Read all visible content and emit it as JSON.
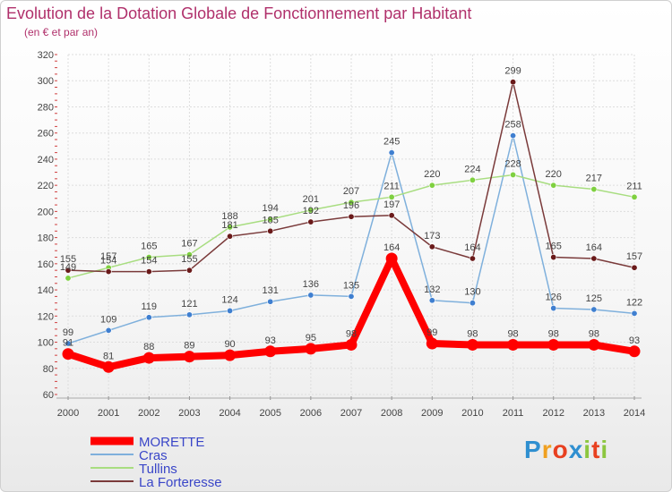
{
  "title": "Evolution de la Dotation Globale de Fonctionnement par Habitant",
  "subtitle": "(en € et par an)",
  "logo_text": "Proxiti",
  "chart_data": {
    "type": "line",
    "title": "Evolution de la Dotation Globale de Fonctionnement par Habitant",
    "subtitle": "(en € et par an)",
    "xlabel": "",
    "ylabel": "",
    "ylim": [
      60,
      320
    ],
    "yticks": [
      60,
      80,
      100,
      120,
      140,
      160,
      180,
      200,
      220,
      240,
      260,
      280,
      300,
      320
    ],
    "grid": true,
    "legend_position": "bottom-left",
    "x": [
      "2000",
      "2001",
      "2002",
      "2003",
      "2004",
      "2005",
      "2006",
      "2007",
      "2008",
      "2009",
      "2010",
      "2011",
      "2012",
      "2013",
      "2014"
    ],
    "series": [
      {
        "name": "MORETTE",
        "color": "#ff0000",
        "line_color": "#ff0000",
        "width": "bold",
        "values": [
          91,
          81,
          88,
          89,
          90,
          93,
          95,
          98,
          164,
          99,
          98,
          98,
          98,
          98,
          93
        ]
      },
      {
        "name": "Cras",
        "color": "#3f7fd0",
        "line_color": "#7fb0dc",
        "width": "thin",
        "values": [
          99,
          109,
          119,
          121,
          124,
          131,
          136,
          135,
          245,
          132,
          130,
          258,
          126,
          125,
          122
        ]
      },
      {
        "name": "Tullins",
        "color": "#7fd040",
        "line_color": "#a8dd80",
        "width": "thin",
        "values": [
          149,
          157,
          165,
          167,
          188,
          194,
          201,
          207,
          211,
          220,
          224,
          228,
          220,
          217,
          211
        ]
      },
      {
        "name": "La Forteresse",
        "color": "#6a1a1a",
        "line_color": "#7a3a3a",
        "width": "thin",
        "values": [
          155,
          154,
          154,
          155,
          181,
          185,
          192,
          196,
          197,
          173,
          164,
          299,
          165,
          164,
          157
        ]
      }
    ],
    "labels": [
      [
        "91",
        "81",
        "88",
        "89",
        "90",
        "93",
        "95",
        "98",
        "164",
        "99",
        "98",
        "98",
        "98",
        "98",
        "93"
      ],
      [
        "99",
        "109",
        "119",
        "121",
        "124",
        "131",
        "136",
        "135",
        "245",
        "132",
        "130",
        "258",
        "126",
        "125",
        "122"
      ],
      [
        "149",
        "157",
        "165",
        "167",
        "188",
        "194",
        "201",
        "207",
        "211",
        "220",
        "224",
        "228",
        "220",
        "217",
        "211"
      ],
      [
        "155",
        "154",
        "154",
        "155",
        "181",
        "185",
        "192",
        "196",
        "197",
        "173",
        "164",
        "299",
        "165",
        "164",
        "157"
      ]
    ]
  }
}
